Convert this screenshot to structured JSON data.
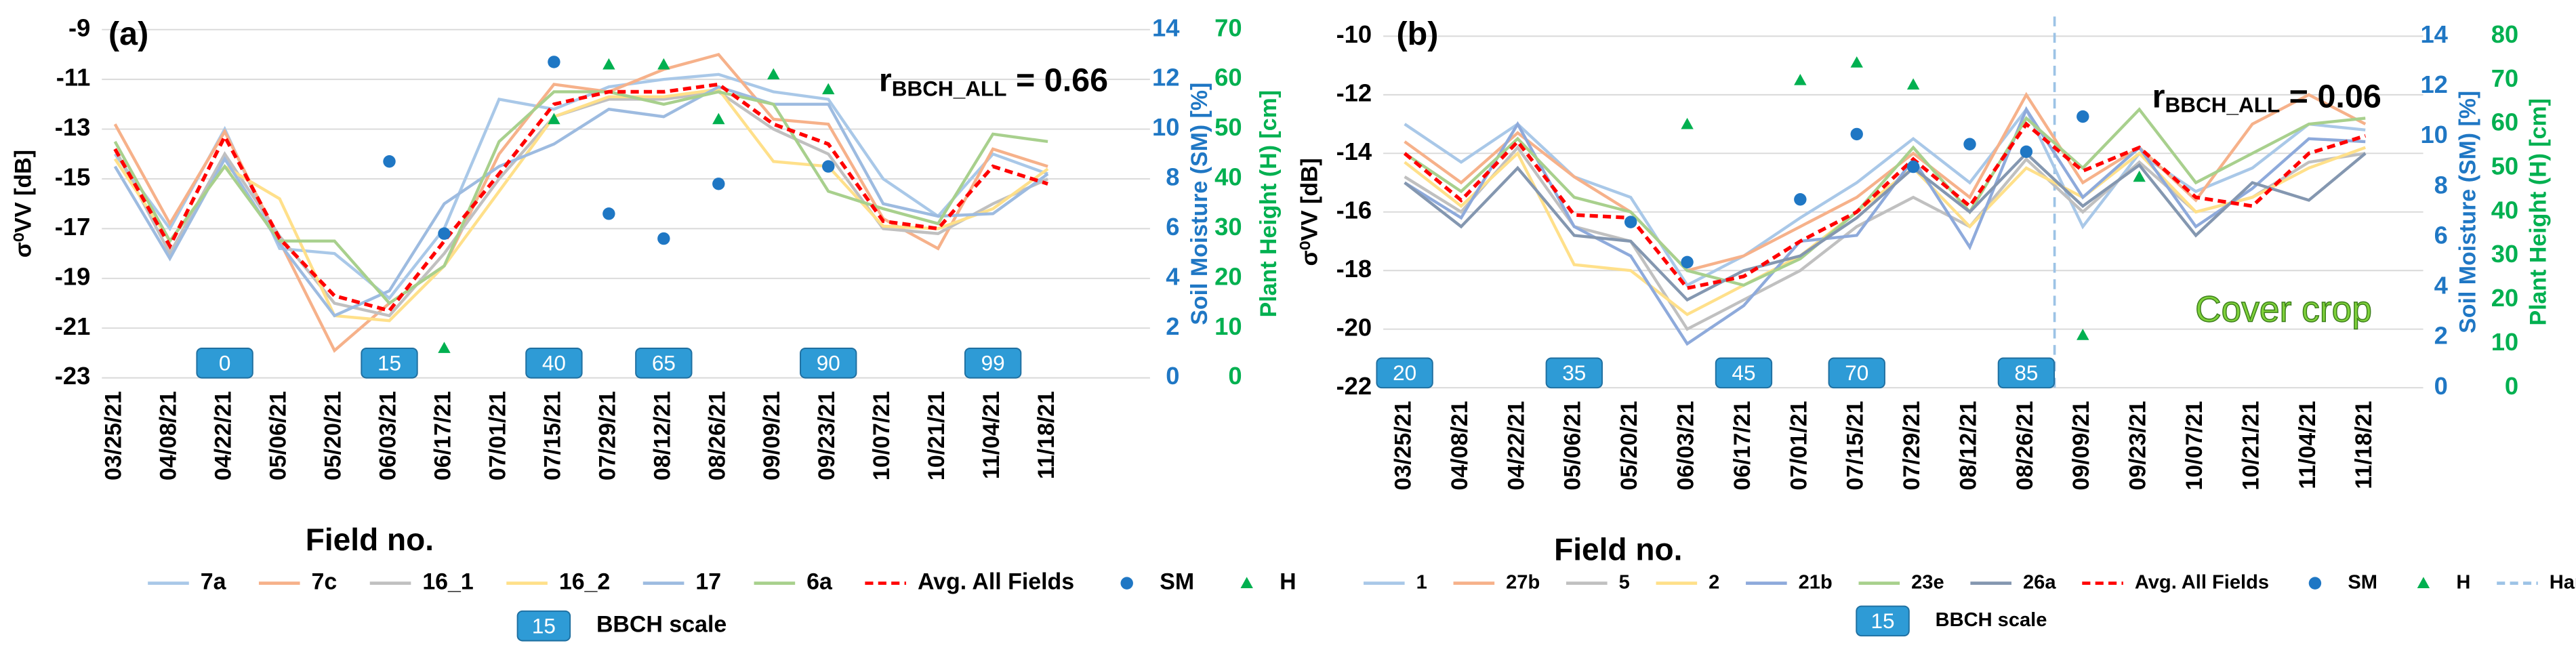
{
  "chart_data": [
    {
      "type": "line",
      "panel": "(a)",
      "ylabel": "σ⁰VV [dB]",
      "y2label": "Soil Moisture (SM) [%]",
      "y3label": "Plant Height (H) [cm]",
      "xlabel": "Field no.",
      "correlation": {
        "symbol": "r",
        "subscript": "BBCH_ALL",
        "text": " = 0.66"
      },
      "categories": [
        "03/25/21",
        "04/08/21",
        "04/22/21",
        "05/06/21",
        "05/20/21",
        "06/03/21",
        "06/17/21",
        "07/01/21",
        "07/15/21",
        "07/29/21",
        "08/12/21",
        "08/26/21",
        "09/09/21",
        "09/23/21",
        "10/07/21",
        "10/21/21",
        "11/04/21",
        "11/18/21"
      ],
      "ylim": [
        -23,
        -9
      ],
      "yticks": [
        -9,
        -11,
        -13,
        -15,
        -17,
        -19,
        -21,
        -23
      ],
      "y2lim": [
        0,
        14
      ],
      "y2ticks": [
        0,
        2,
        4,
        6,
        8,
        10,
        12,
        14
      ],
      "y3lim": [
        0,
        70
      ],
      "y3ticks": [
        0,
        10,
        20,
        30,
        40,
        50,
        60,
        70
      ],
      "grid": true,
      "series": [
        {
          "name": "7a",
          "color": "#a9c8e8",
          "values": [
            -14.0,
            -17.0,
            -13.0,
            -17.8,
            -18.0,
            -19.8,
            -17.0,
            -11.8,
            -12.2,
            -11.3,
            -11.0,
            -10.8,
            -11.5,
            -11.8,
            -15.0,
            -16.5,
            -14.0,
            -14.8
          ]
        },
        {
          "name": "7c",
          "color": "#f6b18a",
          "values": [
            -12.8,
            -16.8,
            -13.1,
            -17.5,
            -21.9,
            -20.0,
            -18.5,
            -14.0,
            -11.2,
            -11.5,
            -10.6,
            -10.0,
            -12.6,
            -12.8,
            -16.6,
            -17.8,
            -13.8,
            -14.5
          ]
        },
        {
          "name": "16_1",
          "color": "#c0c0c0",
          "values": [
            -13.8,
            -18.0,
            -14.0,
            -17.3,
            -20.0,
            -20.5,
            -18.0,
            -15.0,
            -12.5,
            -11.8,
            -11.8,
            -11.5,
            -13.0,
            -14.0,
            -17.0,
            -17.2,
            -16.0,
            -15.0
          ]
        },
        {
          "name": "16_2",
          "color": "#ffe08a",
          "values": [
            -14.2,
            -17.5,
            -14.5,
            -15.8,
            -20.5,
            -20.7,
            -18.5,
            -15.5,
            -12.5,
            -11.7,
            -11.7,
            -11.4,
            -14.3,
            -14.5,
            -16.9,
            -17.0,
            -16.2,
            -14.6
          ]
        },
        {
          "name": "17",
          "color": "#9dbbe0",
          "values": [
            -14.5,
            -18.2,
            -14.2,
            -17.6,
            -20.5,
            -19.5,
            -16.0,
            -14.5,
            -13.6,
            -12.2,
            -12.5,
            -11.3,
            -12.0,
            -12.0,
            -16.0,
            -16.5,
            -16.4,
            -14.8
          ]
        },
        {
          "name": "6a",
          "color": "#a8d08d",
          "values": [
            -13.5,
            -17.5,
            -14.5,
            -17.5,
            -17.5,
            -20.0,
            -18.5,
            -13.5,
            -11.5,
            -11.5,
            -12.0,
            -11.5,
            -12.0,
            -15.5,
            -16.2,
            -16.8,
            -13.2,
            -13.5
          ]
        },
        {
          "name": "Avg. All Fields",
          "color": "#ff0000",
          "dash": true,
          "values": [
            -13.8,
            -17.7,
            -13.3,
            -17.4,
            -19.7,
            -20.3,
            -17.5,
            -14.8,
            -12.0,
            -11.5,
            -11.5,
            -11.2,
            -12.8,
            -13.6,
            -16.7,
            -17.0,
            -14.5,
            -15.2
          ]
        },
        {
          "name": "SM",
          "color": "#1f77c4",
          "marker": "circle",
          "axis": "y2",
          "values": [
            null,
            null,
            null,
            null,
            null,
            8.7,
            5.8,
            null,
            12.7,
            6.6,
            5.6,
            7.8,
            null,
            8.5,
            null,
            null,
            null,
            null
          ]
        },
        {
          "name": "H",
          "color": "#00b050",
          "marker": "triangle",
          "axis": "y3",
          "values": [
            null,
            null,
            null,
            null,
            null,
            null,
            6,
            null,
            52,
            63,
            63,
            52,
            61,
            58,
            null,
            null,
            null,
            null
          ]
        }
      ],
      "bbch": [
        null,
        null,
        "0",
        null,
        null,
        "15",
        null,
        null,
        "40",
        null,
        "65",
        null,
        null,
        "90",
        null,
        null,
        "99",
        null
      ],
      "bbch_legend": {
        "example": "15",
        "label": "BBCH scale"
      }
    },
    {
      "type": "line",
      "panel": "(b)",
      "ylabel": "σ⁰VV [dB]",
      "y2label": "Soil Moisture (SM) [%]",
      "y3label": "Plant Height (H) [cm]",
      "xlabel": "Field no.",
      "correlation": {
        "symbol": "r",
        "subscript": "BBCH_ALL",
        "text": " = 0.06"
      },
      "annotation": "Cover crop",
      "categories": [
        "03/25/21",
        "04/08/21",
        "04/22/21",
        "05/06/21",
        "05/20/21",
        "06/03/21",
        "06/17/21",
        "07/01/21",
        "07/15/21",
        "07/29/21",
        "08/12/21",
        "08/26/21",
        "09/09/21",
        "09/23/21",
        "10/07/21",
        "10/21/21",
        "11/04/21",
        "11/18/21"
      ],
      "ylim": [
        -22,
        -10
      ],
      "yticks": [
        -10,
        -12,
        -14,
        -16,
        -18,
        -20,
        -22
      ],
      "y2lim": [
        0,
        14
      ],
      "y2ticks": [
        0,
        2,
        4,
        6,
        8,
        10,
        12,
        14
      ],
      "y3lim": [
        0,
        80
      ],
      "y3ticks": [
        0,
        10,
        20,
        30,
        40,
        50,
        60,
        70,
        80
      ],
      "grid": true,
      "series": [
        {
          "name": "1",
          "color": "#a9c8e8",
          "values": [
            -13.0,
            -14.3,
            -13.0,
            -14.8,
            -15.5,
            -18.5,
            -17.5,
            -16.2,
            -15.0,
            -13.5,
            -15.0,
            -12.5,
            -16.5,
            -14.0,
            -15.3,
            -14.5,
            -13.0,
            -13.2
          ]
        },
        {
          "name": "27b",
          "color": "#f6b18a",
          "values": [
            -13.6,
            -15.0,
            -13.3,
            -14.8,
            -16.0,
            -18.0,
            -17.5,
            -16.5,
            -15.5,
            -14.0,
            -15.5,
            -12.0,
            -15.0,
            -13.8,
            -15.6,
            -13.0,
            -12.0,
            -13.0
          ]
        },
        {
          "name": "5",
          "color": "#c0c0c0",
          "values": [
            -14.8,
            -16.0,
            -13.8,
            -16.5,
            -17.0,
            -20.0,
            -19.0,
            -18.0,
            -16.5,
            -15.5,
            -16.5,
            -14.2,
            -16.0,
            -14.3,
            -16.0,
            -15.5,
            -14.3,
            -14.0
          ]
        },
        {
          "name": "2",
          "color": "#ffe08a",
          "values": [
            -14.3,
            -15.8,
            -14.0,
            -17.8,
            -18.0,
            -19.5,
            -18.5,
            -17.5,
            -16.0,
            -14.5,
            -16.5,
            -14.5,
            -15.5,
            -14.0,
            -16.0,
            -15.5,
            -14.5,
            -13.8
          ]
        },
        {
          "name": "21b",
          "color": "#8eaadb",
          "values": [
            -15.0,
            -16.2,
            -13.0,
            -16.5,
            -17.5,
            -20.5,
            -19.2,
            -17.0,
            -16.8,
            -14.2,
            -17.2,
            -12.5,
            -15.5,
            -13.8,
            -16.5,
            -15.2,
            -13.5,
            -13.6
          ]
        },
        {
          "name": "23e",
          "color": "#a8d08d",
          "values": [
            -14.0,
            -15.3,
            -13.5,
            -15.5,
            -16.0,
            -18.0,
            -18.5,
            -17.6,
            -16.0,
            -13.8,
            -16.0,
            -12.8,
            -14.5,
            -12.5,
            -15.0,
            -14.0,
            -13.0,
            -12.8
          ]
        },
        {
          "name": "26a",
          "color": "#8497b0",
          "values": [
            -15.0,
            -16.5,
            -14.5,
            -16.8,
            -17.0,
            -19.0,
            -18.0,
            -17.5,
            -16.2,
            -14.5,
            -16.0,
            -14.0,
            -15.8,
            -14.4,
            -16.8,
            -15.0,
            -15.6,
            -14.0
          ]
        },
        {
          "name": "Avg. All Fields",
          "color": "#ff0000",
          "dash": true,
          "values": [
            -14.0,
            -15.6,
            -13.6,
            -16.1,
            -16.2,
            -18.6,
            -18.2,
            -17.0,
            -16.0,
            -14.2,
            -15.8,
            -13.0,
            -14.6,
            -13.8,
            -15.5,
            -15.8,
            -14.0,
            -13.4
          ]
        },
        {
          "name": "SM",
          "color": "#1f77c4",
          "marker": "circle",
          "axis": "y2",
          "values": [
            null,
            null,
            null,
            null,
            6.6,
            5.0,
            null,
            7.5,
            10.1,
            8.8,
            9.7,
            9.4,
            10.8,
            null,
            null,
            null,
            null,
            null
          ]
        },
        {
          "name": "H",
          "color": "#00b050",
          "marker": "triangle",
          "axis": "y3",
          "values": [
            null,
            null,
            null,
            null,
            null,
            60,
            null,
            70,
            74,
            69,
            null,
            null,
            12,
            48,
            null,
            null,
            null,
            null
          ]
        }
      ],
      "harvest": {
        "name": "Harvest",
        "category": "08/26/21",
        "color": "#9dc3e6"
      },
      "bbch": [
        "20",
        null,
        null,
        "35",
        null,
        null,
        "45",
        null,
        "70",
        null,
        null,
        "85",
        null,
        null,
        null,
        null,
        null,
        null
      ],
      "bbch_legend": {
        "example": "15",
        "label": "BBCH scale"
      }
    }
  ]
}
